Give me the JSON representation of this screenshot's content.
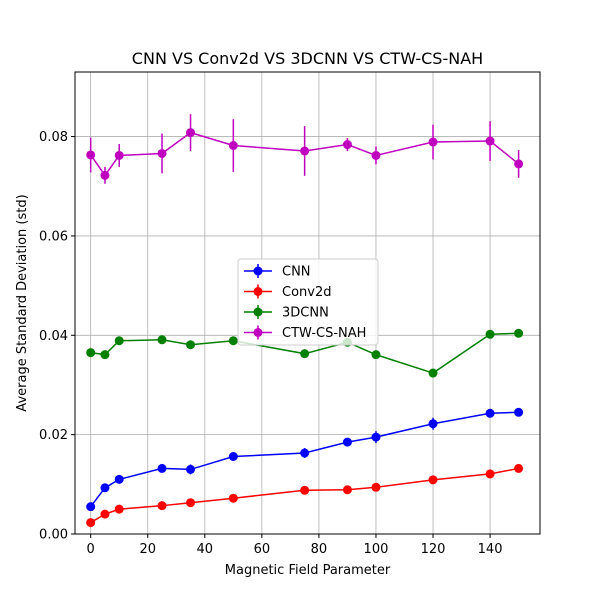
{
  "chart_data": {
    "type": "line",
    "title": "CNN VS Conv2d VS 3DCNN VS CTW-CS-NAH",
    "xlabel": "Magnetic Field Parameter",
    "ylabel": "Average Standard Deviation (std)",
    "xlim": [
      -5.5,
      157.5
    ],
    "ylim": [
      0,
      0.093
    ],
    "xticks": [
      0,
      20,
      40,
      60,
      80,
      100,
      120,
      140
    ],
    "yticks": [
      0.0,
      0.02,
      0.04,
      0.06,
      0.08
    ],
    "ytick_labels": [
      "0.00",
      "0.02",
      "0.04",
      "0.06",
      "0.08"
    ],
    "grid": true,
    "legend_position": "center",
    "x": [
      0,
      5,
      10,
      25,
      35,
      50,
      75,
      90,
      100,
      120,
      140,
      150
    ],
    "series": [
      {
        "name": "CNN",
        "color": "#0000ff",
        "values": [
          0.0055,
          0.0093,
          0.011,
          0.0132,
          0.013,
          0.0156,
          0.0163,
          0.0185,
          0.0195,
          0.0222,
          0.0243,
          0.0245
        ],
        "errors": [
          0.0004,
          0.0005,
          0.0005,
          0.0005,
          0.001,
          0.0005,
          0.001,
          0.0005,
          0.0012,
          0.0012,
          0.0006,
          0.0005
        ]
      },
      {
        "name": "Conv2d",
        "color": "#ff0000",
        "values": [
          0.0023,
          0.004,
          0.005,
          0.0057,
          0.0063,
          0.0072,
          0.0088,
          0.0089,
          0.0094,
          0.0109,
          0.0121,
          0.0132
        ],
        "errors": [
          0.0003,
          0.0003,
          0.0003,
          0.0003,
          0.0003,
          0.0003,
          0.0003,
          0.0003,
          0.0003,
          0.0003,
          0.0003,
          0.0003
        ]
      },
      {
        "name": "3DCNN",
        "color": "#008000",
        "values": [
          0.0365,
          0.0361,
          0.0389,
          0.0391,
          0.0381,
          0.0389,
          0.0363,
          0.0386,
          0.0361,
          0.0324,
          0.0402,
          0.0404
        ],
        "errors": [
          0.0004,
          0.0004,
          0.0004,
          0.0004,
          0.0004,
          0.0004,
          0.0004,
          0.0004,
          0.0004,
          0.0004,
          0.0004,
          0.0004
        ]
      },
      {
        "name": "CTW-CS-NAH",
        "color": "#bf00bf",
        "values": [
          0.0763,
          0.0722,
          0.0762,
          0.0766,
          0.0808,
          0.0782,
          0.0771,
          0.0784,
          0.0762,
          0.0789,
          0.0791,
          0.0745
        ],
        "errors": [
          0.0035,
          0.0017,
          0.0023,
          0.004,
          0.0037,
          0.0053,
          0.005,
          0.0013,
          0.0018,
          0.0035,
          0.004,
          0.0028
        ]
      }
    ]
  }
}
